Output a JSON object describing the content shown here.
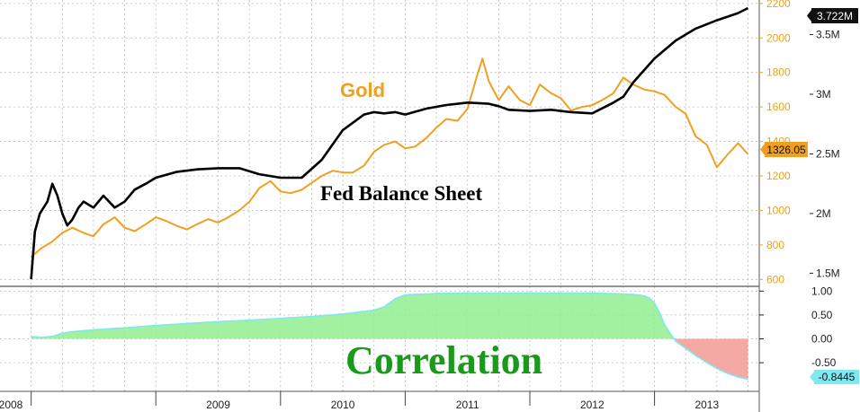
{
  "chart_data": [
    {
      "type": "line",
      "series": [
        {
          "name": "Gold",
          "axis": "left",
          "color": "#f0a020",
          "x": [
            2008.0,
            2008.08,
            2008.17,
            2008.25,
            2008.33,
            2008.42,
            2008.5,
            2008.58,
            2008.67,
            2008.75,
            2008.83,
            2008.92,
            2009.0,
            2009.08,
            2009.17,
            2009.25,
            2009.33,
            2009.42,
            2009.5,
            2009.58,
            2009.67,
            2009.75,
            2009.83,
            2009.92,
            2010.0,
            2010.08,
            2010.17,
            2010.25,
            2010.33,
            2010.42,
            2010.5,
            2010.58,
            2010.67,
            2010.75,
            2010.83,
            2010.92,
            2011.0,
            2011.08,
            2011.17,
            2011.25,
            2011.33,
            2011.42,
            2011.5,
            2011.58,
            2011.62,
            2011.67,
            2011.75,
            2011.83,
            2011.92,
            2012.0,
            2012.08,
            2012.17,
            2012.25,
            2012.33,
            2012.42,
            2012.5,
            2012.58,
            2012.67,
            2012.75,
            2012.83,
            2012.92,
            2013.0,
            2013.08,
            2013.17,
            2013.25,
            2013.33,
            2013.42,
            2013.5,
            2013.58,
            2013.67,
            2013.75
          ],
          "values": [
            730,
            780,
            820,
            870,
            900,
            870,
            850,
            920,
            960,
            900,
            880,
            920,
            960,
            940,
            910,
            890,
            920,
            950,
            930,
            960,
            1000,
            1050,
            1130,
            1170,
            1110,
            1100,
            1120,
            1160,
            1200,
            1230,
            1220,
            1220,
            1260,
            1340,
            1380,
            1400,
            1360,
            1370,
            1420,
            1480,
            1530,
            1520,
            1590,
            1790,
            1880,
            1750,
            1640,
            1720,
            1640,
            1610,
            1730,
            1680,
            1650,
            1580,
            1600,
            1610,
            1640,
            1680,
            1770,
            1730,
            1700,
            1690,
            1670,
            1600,
            1560,
            1430,
            1380,
            1250,
            1320,
            1390,
            1326
          ]
        },
        {
          "name": "Fed Balance Sheet",
          "axis": "right",
          "color": "#000000",
          "x": [
            2008.0,
            2008.03,
            2008.07,
            2008.13,
            2008.17,
            2008.21,
            2008.25,
            2008.29,
            2008.33,
            2008.38,
            2008.42,
            2008.5,
            2008.58,
            2008.67,
            2008.75,
            2008.83,
            2008.92,
            2009.0,
            2009.17,
            2009.33,
            2009.5,
            2009.67,
            2009.83,
            2010.0,
            2010.17,
            2010.33,
            2010.5,
            2010.67,
            2010.75,
            2010.83,
            2010.92,
            2011.0,
            2011.17,
            2011.33,
            2011.5,
            2011.67,
            2011.75,
            2011.83,
            2012.0,
            2012.17,
            2012.33,
            2012.5,
            2012.67,
            2012.75,
            2012.83,
            2013.0,
            2013.17,
            2013.33,
            2013.5,
            2013.67,
            2013.75
          ],
          "values": [
            1.45,
            1.85,
            2.0,
            2.1,
            2.25,
            2.15,
            2.0,
            1.9,
            1.95,
            2.05,
            2.1,
            2.05,
            2.15,
            2.05,
            2.1,
            2.2,
            2.25,
            2.3,
            2.35,
            2.37,
            2.38,
            2.38,
            2.33,
            2.3,
            2.3,
            2.45,
            2.7,
            2.83,
            2.85,
            2.84,
            2.85,
            2.83,
            2.88,
            2.91,
            2.93,
            2.92,
            2.9,
            2.87,
            2.86,
            2.87,
            2.85,
            2.84,
            2.93,
            2.98,
            3.1,
            3.3,
            3.45,
            3.55,
            3.62,
            3.68,
            3.722
          ]
        }
      ],
      "left_axis": {
        "ticks": [
          "600",
          "800",
          "1000",
          "1200",
          "1400",
          "1600",
          "1800",
          "2000",
          "2200"
        ],
        "range": [
          560,
          2220
        ],
        "color": "#e8a317"
      },
      "right_axis": {
        "ticks": [
          "1.5M",
          "2M",
          "2.5M",
          "3M",
          "3.5M"
        ],
        "range": [
          1.39,
          3.79
        ]
      },
      "last_values": {
        "gold": "1326.05",
        "fed": "3.722M"
      },
      "annotations": {
        "gold": "Gold",
        "fed": "Fed Balance Sheet"
      },
      "grid": true
    },
    {
      "type": "area",
      "x": [
        2008.0,
        2008.08,
        2008.17,
        2008.25,
        2008.33,
        2008.5,
        2008.75,
        2009.0,
        2009.25,
        2009.5,
        2009.75,
        2010.0,
        2010.25,
        2010.5,
        2010.75,
        2010.83,
        2010.92,
        2011.0,
        2011.25,
        2011.5,
        2011.75,
        2012.0,
        2012.25,
        2012.5,
        2012.75,
        2012.83,
        2012.92,
        2012.96,
        2013.0,
        2013.04,
        2013.08,
        2013.13,
        2013.17,
        2013.25,
        2013.33,
        2013.42,
        2013.5,
        2013.58,
        2013.67,
        2013.75
      ],
      "values": [
        0.05,
        0.03,
        0.05,
        0.12,
        0.15,
        0.19,
        0.23,
        0.28,
        0.32,
        0.36,
        0.39,
        0.43,
        0.47,
        0.52,
        0.6,
        0.67,
        0.84,
        0.92,
        0.95,
        0.96,
        0.96,
        0.96,
        0.96,
        0.96,
        0.94,
        0.93,
        0.9,
        0.85,
        0.75,
        0.55,
        0.3,
        0.1,
        -0.05,
        -0.2,
        -0.35,
        -0.5,
        -0.62,
        -0.72,
        -0.8,
        -0.8445
      ],
      "ticks": [
        "1.00",
        "0.50",
        "0.00",
        "-0.50"
      ],
      "range": [
        -1.1,
        1.1
      ],
      "last_value": "-0.8445",
      "annotation": "Correlation",
      "positive_color": "#90ee90",
      "negative_color": "#f4a09a",
      "line_color": "#7fe8f0"
    }
  ],
  "x_axis": {
    "years": [
      "2008",
      "2009",
      "2010",
      "2011",
      "2012",
      "2013"
    ],
    "year_starts": [
      2008,
      2009,
      2010,
      2011,
      2012,
      2013
    ],
    "range": [
      2007.75,
      2013.84
    ]
  }
}
